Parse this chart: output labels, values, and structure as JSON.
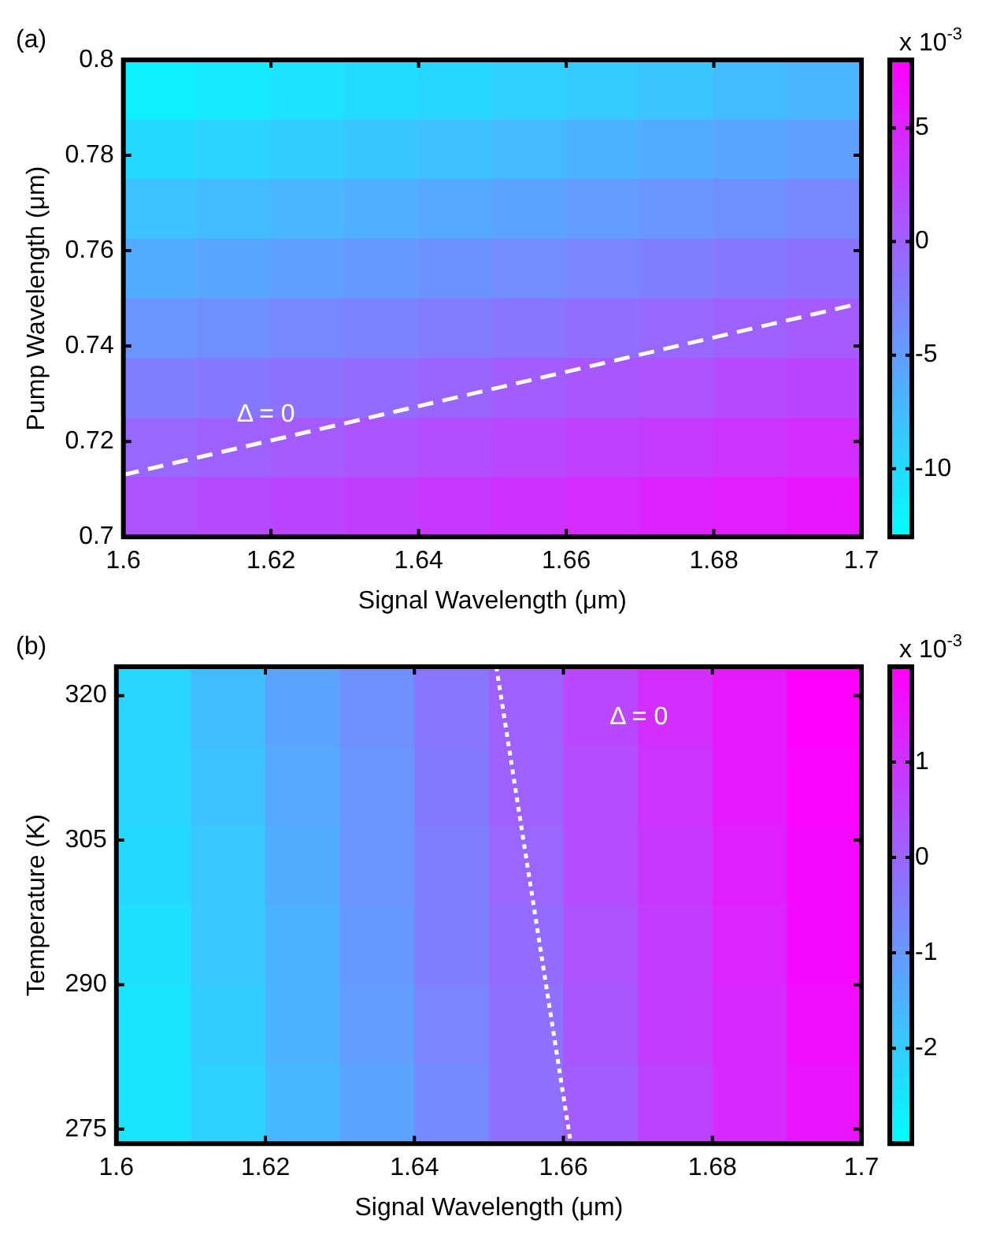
{
  "chart_data": [
    {
      "type": "heatmap",
      "title": "(a)",
      "xlabel": "Signal Wavelength (μm)",
      "ylabel": "Pump Wavelength (μm)",
      "clabel": "x 10$^{-3}$",
      "xlim": [
        1.6,
        1.7
      ],
      "xticks": [
        1.6,
        1.62,
        1.64,
        1.66,
        1.68,
        1.7
      ],
      "ylim": [
        0.7,
        0.8
      ],
      "yticks": [
        0.7,
        0.72,
        0.74,
        0.76,
        0.78,
        0.8
      ],
      "clim": [
        -13,
        8
      ],
      "cticks": [
        -10,
        -5,
        0,
        5
      ],
      "colors": [
        "#00ffff",
        "#ff00ff"
      ],
      "cells": [
        [
          -11.8,
          -11.3,
          -10.7,
          -10.2,
          -9.7,
          -9.1,
          -8.6,
          -8.1,
          -7.5,
          -7.0
        ],
        [
          -9.9,
          -9.4,
          -8.9,
          -8.3,
          -7.8,
          -7.3,
          -6.7,
          -6.2,
          -5.6,
          -5.1
        ],
        [
          -8.0,
          -7.5,
          -7.0,
          -6.4,
          -5.9,
          -5.4,
          -4.8,
          -4.3,
          -3.8,
          -3.2
        ],
        [
          -6.2,
          -5.6,
          -5.1,
          -4.6,
          -4.0,
          -3.5,
          -3.0,
          -2.4,
          -1.9,
          -1.4
        ],
        [
          -4.3,
          -3.8,
          -3.2,
          -2.7,
          -2.2,
          -1.6,
          -1.1,
          -0.6,
          0.0,
          0.5
        ],
        [
          -2.4,
          -1.9,
          -1.4,
          -0.8,
          -0.3,
          0.3,
          0.8,
          1.3,
          1.9,
          2.4
        ],
        [
          -0.5,
          0.0,
          0.5,
          1.1,
          1.6,
          2.1,
          2.7,
          3.2,
          3.7,
          4.3
        ],
        [
          1.3,
          1.9,
          2.4,
          2.9,
          3.5,
          4.0,
          4.5,
          5.1,
          5.6,
          6.1
        ]
      ],
      "series": [
        {
          "type": "line",
          "color": "#ffffff",
          "line_style": "dashed",
          "x": [
            1.6,
            1.7
          ],
          "values": [
            0.713,
            0.749
          ]
        }
      ],
      "annotations": [
        "Δ = 0"
      ]
    },
    {
      "type": "heatmap",
      "title": "(b)",
      "xlabel": "Signal Wavelength (μm)",
      "ylabel": "Temperature (K)",
      "clabel": "x 10$^{-3}$",
      "xlim": [
        1.6,
        1.7
      ],
      "xticks": [
        1.6,
        1.62,
        1.64,
        1.66,
        1.68,
        1.7
      ],
      "ylim": [
        273.5,
        323
      ],
      "yticks": [
        275,
        290,
        305,
        320
      ],
      "clim": [
        -3,
        2
      ],
      "cticks": [
        -2,
        -1,
        0,
        1
      ],
      "colors": [
        "#00ffff",
        "#ff00ff"
      ],
      "cells": [
        [
          -2.2,
          -1.7,
          -1.2,
          -0.8,
          -0.3,
          0.1,
          0.6,
          1.1,
          1.5,
          2.0
        ],
        [
          -2.2,
          -1.8,
          -1.3,
          -0.9,
          -0.4,
          0.1,
          0.5,
          1.0,
          1.5,
          1.9
        ],
        [
          -2.3,
          -1.9,
          -1.4,
          -0.9,
          -0.5,
          0.0,
          0.5,
          0.9,
          1.4,
          1.8
        ],
        [
          -2.4,
          -1.9,
          -1.5,
          -1.0,
          -0.5,
          -0.1,
          0.4,
          0.8,
          1.3,
          1.8
        ],
        [
          -2.5,
          -2.0,
          -1.5,
          -1.1,
          -0.6,
          -0.2,
          0.3,
          0.8,
          1.2,
          1.7
        ],
        [
          -2.5,
          -2.1,
          -1.6,
          -1.2,
          -0.7,
          -0.2,
          0.2,
          0.7,
          1.2,
          1.6
        ]
      ],
      "series": [
        {
          "type": "line",
          "color": "#ffffff",
          "line_style": "dotted",
          "x": [
            1.651,
            1.661
          ],
          "values": [
            323,
            273.5
          ]
        }
      ],
      "annotations": [
        "Δ = 0"
      ]
    }
  ]
}
